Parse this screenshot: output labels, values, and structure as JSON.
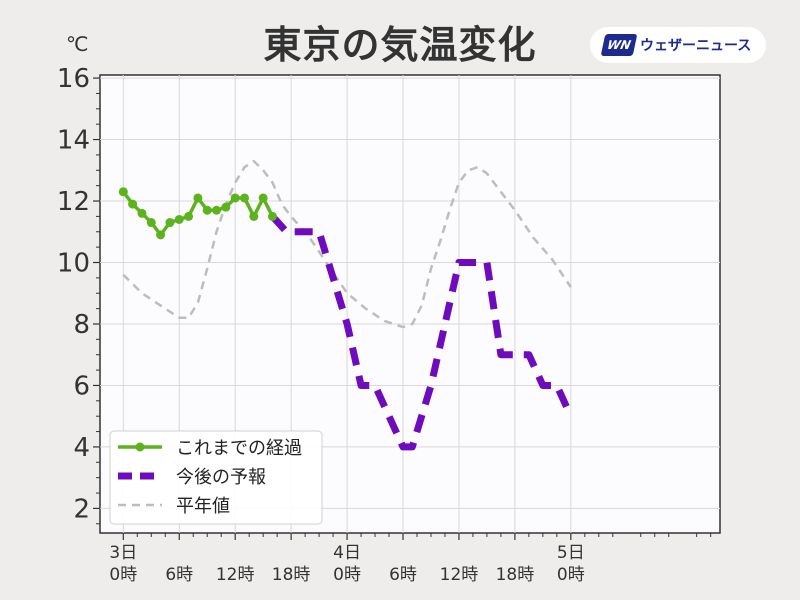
{
  "header": {
    "title": "東京の気温変化",
    "logo_mark": "WN",
    "logo_text": "ウェザーニュース"
  },
  "chart_data": {
    "type": "line",
    "title": "東京の気温変化",
    "ylabel": "℃",
    "ylim": [
      1.2,
      16.1
    ],
    "xlim": [
      -5,
      128
    ],
    "grid": true,
    "legend_position": "bottom-left",
    "y_ticks": [
      2,
      4,
      6,
      8,
      10,
      12,
      14,
      16
    ],
    "x_ticks": [
      {
        "x": 0,
        "label": [
          "3日",
          "0時"
        ]
      },
      {
        "x": 12,
        "label": [
          "",
          "6時"
        ]
      },
      {
        "x": 24,
        "label": [
          "",
          "12時"
        ]
      },
      {
        "x": 36,
        "label": [
          "",
          "18時"
        ]
      },
      {
        "x": 48,
        "label": [
          "4日",
          "0時"
        ]
      },
      {
        "x": 60,
        "label": [
          "",
          "6時"
        ]
      },
      {
        "x": 72,
        "label": [
          "",
          "12時"
        ]
      },
      {
        "x": 84,
        "label": [
          "",
          "18時"
        ]
      },
      {
        "x": 96,
        "label": [
          "5日",
          "0時"
        ]
      }
    ],
    "series": [
      {
        "name": "これまでの経過",
        "color": "#5cb31e",
        "style": "solid-markers",
        "x": [
          0,
          2,
          4,
          6,
          8,
          10,
          12,
          14,
          16,
          18,
          20,
          22,
          24,
          26,
          28,
          30,
          32
        ],
        "y": [
          12.3,
          11.9,
          11.6,
          11.3,
          10.9,
          11.3,
          11.4,
          11.5,
          12.1,
          11.7,
          11.7,
          11.8,
          12.1,
          12.1,
          11.5,
          12.1,
          11.5
        ]
      },
      {
        "name": "今後の予報",
        "color": "#6d0bbd",
        "style": "dashed",
        "x": [
          32,
          35,
          36,
          42,
          48,
          51,
          54,
          57,
          60,
          62,
          66,
          69,
          72,
          75,
          78,
          81,
          84,
          87,
          90,
          93,
          96
        ],
        "y": [
          11.5,
          11,
          11,
          11,
          8,
          6,
          6,
          5,
          4,
          4,
          6,
          8,
          10,
          10,
          10,
          7,
          7,
          7,
          6,
          6,
          5
        ]
      },
      {
        "name": "平年値",
        "color": "#bdbdbd",
        "style": "dashed-thin",
        "x": [
          0,
          4,
          8,
          12,
          14,
          16,
          18,
          20,
          22,
          24,
          26,
          28,
          30,
          32,
          34,
          36,
          40,
          44,
          48,
          52,
          56,
          60,
          62,
          64,
          66,
          68,
          70,
          72,
          74,
          76,
          78,
          80,
          84,
          88,
          92,
          96
        ],
        "y": [
          9.6,
          9.0,
          8.6,
          8.2,
          8.2,
          8.7,
          9.8,
          11.0,
          11.9,
          12.6,
          13.1,
          13.3,
          13.0,
          12.6,
          11.9,
          11.5,
          10.8,
          9.9,
          9.0,
          8.5,
          8.1,
          7.9,
          8.0,
          8.6,
          9.8,
          10.7,
          11.7,
          12.6,
          13.0,
          13.1,
          12.9,
          12.5,
          11.7,
          10.8,
          10.1,
          9.2
        ]
      }
    ]
  }
}
